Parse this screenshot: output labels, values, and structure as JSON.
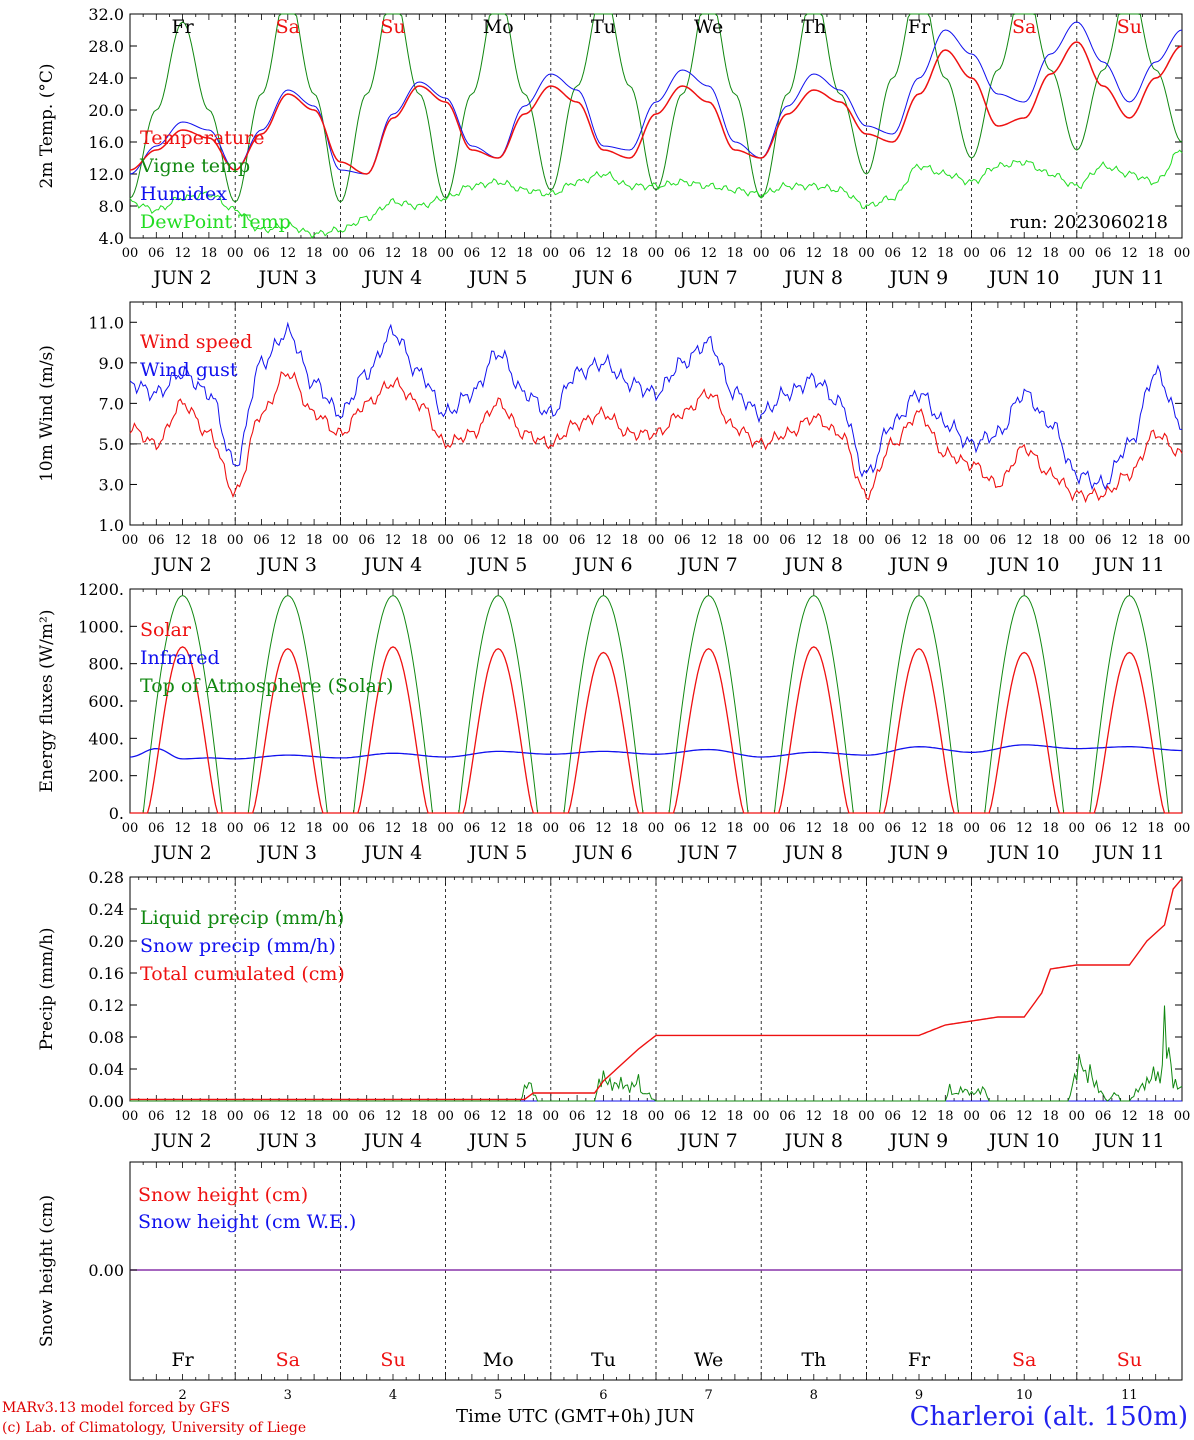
{
  "footer": {
    "model": "MARv3.13 model forced by GFS",
    "copyright": "(c) Lab. of Climatology, University of Liege",
    "time_axis": "Time UTC (GMT+0h)",
    "month": "JUN",
    "station": "Charleroi (alt. 150m)"
  },
  "colors": {
    "red": "#ee1111",
    "green": "#118811",
    "blue": "#1111ee",
    "lime": "#22dd22",
    "purple": "#8833aa"
  },
  "days": {
    "weekdays": [
      "Fr",
      "Sa",
      "Su",
      "Mo",
      "Tu",
      "We",
      "Th",
      "Fr",
      "Sa",
      "Su"
    ],
    "weekend": [
      false,
      true,
      true,
      false,
      false,
      false,
      false,
      false,
      true,
      true
    ],
    "dates": [
      "JUN  2",
      "JUN  3",
      "JUN  4",
      "JUN  5",
      "JUN  6",
      "JUN  7",
      "JUN  8",
      "JUN  9",
      "JUN 10",
      "JUN 11"
    ],
    "day_numbers": [
      "2",
      "3",
      "4",
      "5",
      "6",
      "7",
      "8",
      "9",
      "10",
      "11"
    ],
    "hour_ticks": [
      "00",
      "06",
      "12",
      "18"
    ],
    "end_tick": "00"
  },
  "chart_data": [
    {
      "type": "line",
      "id": "temperature",
      "ylabel": "2m Temp. (°C)",
      "ylim": [
        4,
        32
      ],
      "yticks": [
        "4.0",
        "8.0",
        "12.0",
        "16.0",
        "20.0",
        "24.0",
        "28.0",
        "32.0"
      ],
      "run_label": "run: 2023060218",
      "x_unit": "hours since JUN 2 00 UTC",
      "series": [
        {
          "name": "Temperature",
          "color": "red",
          "x": [
            0,
            6,
            12,
            18,
            24,
            30,
            36,
            42,
            48,
            54,
            60,
            66,
            72,
            78,
            84,
            90,
            96,
            102,
            108,
            114,
            120,
            126,
            132,
            138,
            144,
            150,
            156,
            162,
            168,
            174,
            180,
            186,
            192,
            198,
            204,
            210,
            216,
            222,
            228,
            234,
            240
          ],
          "y": [
            12.5,
            15,
            17.5,
            16.5,
            12.5,
            17,
            22,
            20,
            13.5,
            12,
            19,
            23,
            21,
            15,
            14,
            19.5,
            23,
            21,
            15,
            14,
            19.5,
            23,
            21,
            15,
            14,
            19.5,
            22.5,
            21,
            17,
            16,
            22,
            27.5,
            24,
            18,
            19,
            24.5,
            28.5,
            23,
            19,
            24,
            28
          ]
        },
        {
          "name": "Vigne temp",
          "color": "green",
          "x": [
            0,
            6,
            12,
            18,
            24,
            30,
            36,
            42,
            48,
            54,
            60,
            66,
            72,
            78,
            84,
            90,
            96,
            102,
            108,
            114,
            120,
            126,
            132,
            138,
            144,
            150,
            156,
            162,
            168,
            174,
            180,
            186,
            192,
            198,
            204,
            210,
            216,
            222,
            228,
            234,
            240
          ],
          "y": [
            9,
            20,
            31,
            20,
            8.5,
            22,
            35,
            22,
            8.5,
            22,
            35,
            22,
            9,
            22,
            35,
            22,
            10,
            23,
            35,
            23,
            10,
            22,
            35,
            22,
            9,
            22,
            35,
            22,
            12,
            24,
            36,
            24,
            14,
            25,
            36,
            25,
            15,
            25,
            36,
            25,
            16
          ]
        },
        {
          "name": "Humidex",
          "color": "blue",
          "x": [
            0,
            6,
            12,
            18,
            24,
            30,
            36,
            42,
            48,
            54,
            60,
            66,
            72,
            78,
            84,
            90,
            96,
            102,
            108,
            114,
            120,
            126,
            132,
            138,
            144,
            150,
            156,
            162,
            168,
            174,
            180,
            186,
            192,
            198,
            204,
            210,
            216,
            222,
            228,
            234,
            240
          ],
          "y": [
            12,
            15.5,
            18.5,
            17.5,
            12.5,
            17.5,
            22.5,
            20.5,
            12.5,
            12,
            19.5,
            23.5,
            21.5,
            15.5,
            14,
            20.5,
            24.5,
            22.5,
            15.5,
            15,
            21,
            25,
            23,
            16,
            14,
            20.5,
            24.5,
            22.5,
            18,
            17,
            24,
            30,
            27,
            22,
            21,
            27,
            31,
            26,
            21,
            26,
            30
          ]
        },
        {
          "name": "DewPoint Temp",
          "color": "lime",
          "x": [
            0,
            6,
            12,
            18,
            24,
            30,
            36,
            42,
            48,
            54,
            60,
            66,
            72,
            78,
            84,
            90,
            96,
            102,
            108,
            114,
            120,
            126,
            132,
            138,
            144,
            150,
            156,
            162,
            168,
            174,
            180,
            186,
            192,
            198,
            204,
            210,
            216,
            222,
            228,
            234,
            240
          ],
          "y": [
            8.5,
            7.5,
            9,
            9.5,
            7.5,
            5,
            5.5,
            4.5,
            5,
            6.5,
            8.5,
            8,
            9,
            10.5,
            11,
            10,
            9.5,
            11,
            12,
            10.5,
            10.5,
            11,
            10.5,
            10,
            9.5,
            10.5,
            10.5,
            10,
            8,
            9,
            13,
            12,
            11,
            13,
            13.5,
            12,
            10.5,
            13,
            12,
            11,
            15
          ]
        }
      ]
    },
    {
      "type": "line",
      "id": "wind",
      "ylabel": "10m Wind (m/s)",
      "ylim": [
        1,
        12
      ],
      "yticks": [
        "1.0",
        "3.0",
        "5.0",
        "7.0",
        "9.0",
        "11.0"
      ],
      "reference_line": 5,
      "x_unit": "hours since JUN 2 00 UTC",
      "series": [
        {
          "name": "Wind speed",
          "color": "red",
          "x": [
            0,
            6,
            12,
            18,
            24,
            30,
            36,
            42,
            48,
            54,
            60,
            66,
            72,
            78,
            84,
            90,
            96,
            102,
            108,
            114,
            120,
            126,
            132,
            138,
            144,
            150,
            156,
            162,
            168,
            174,
            180,
            186,
            192,
            198,
            204,
            210,
            216,
            222,
            228,
            234,
            240
          ],
          "y": [
            5.8,
            5,
            7,
            5.5,
            2.6,
            6.5,
            8.5,
            6.5,
            5.5,
            7,
            8,
            7,
            5,
            5.5,
            7,
            5.5,
            5,
            6,
            6.5,
            5.5,
            5.5,
            6.5,
            7.5,
            5.8,
            5,
            5.5,
            6.3,
            5.5,
            2.5,
            5,
            6.5,
            4.5,
            4,
            3,
            4.8,
            3.5,
            2.5,
            2.5,
            3.5,
            5.5,
            4.5
          ]
        },
        {
          "name": "Wind gust",
          "color": "blue",
          "x": [
            0,
            6,
            12,
            18,
            24,
            30,
            36,
            42,
            48,
            54,
            60,
            66,
            72,
            78,
            84,
            90,
            96,
            102,
            108,
            114,
            120,
            126,
            132,
            138,
            144,
            150,
            156,
            162,
            168,
            174,
            180,
            186,
            192,
            198,
            204,
            210,
            216,
            222,
            228,
            234,
            240
          ],
          "y": [
            8,
            7.5,
            8.5,
            7.5,
            4,
            9,
            10.5,
            8,
            6.5,
            8.5,
            10.5,
            8.5,
            6.5,
            7.5,
            9.5,
            7.5,
            6.5,
            8.5,
            9,
            8,
            7.5,
            9,
            10,
            7.5,
            6.5,
            7.5,
            8.2,
            7,
            3.5,
            6,
            7.5,
            6,
            5,
            5.5,
            7.5,
            6,
            3.5,
            3,
            5,
            8.5,
            6
          ]
        }
      ]
    },
    {
      "type": "line",
      "id": "energy",
      "ylabel": "Energy fluxes (W/m²)",
      "ylim": [
        0,
        1200
      ],
      "yticks": [
        "0.",
        "200.",
        "400.",
        "600.",
        "800.",
        "1000.",
        "1200."
      ],
      "x_unit": "hours since JUN 2 00 UTC",
      "daily_peaks": {
        "Top of Atmosphere (Solar)": 1165,
        "Solar": [
          890,
          880,
          890,
          880,
          860,
          880,
          890,
          880,
          860,
          860
        ]
      },
      "series": [
        {
          "name": "Solar",
          "color": "red",
          "shape": "daily sine 04-20 UTC"
        },
        {
          "name": "Infrared",
          "color": "blue",
          "x": [
            0,
            6,
            12,
            18,
            24,
            36,
            48,
            60,
            72,
            84,
            96,
            108,
            120,
            132,
            144,
            156,
            168,
            180,
            192,
            204,
            216,
            228,
            240
          ],
          "y": [
            300,
            345,
            290,
            295,
            290,
            310,
            295,
            320,
            300,
            330,
            315,
            330,
            315,
            340,
            300,
            325,
            310,
            355,
            325,
            365,
            345,
            355,
            335
          ]
        },
        {
          "name": "Top of Atmosphere (Solar)",
          "color": "green",
          "shape": "daily sine 03-21 UTC"
        }
      ]
    },
    {
      "type": "line",
      "id": "precip",
      "ylabel": "Precip (mm/h)",
      "ylim": [
        0,
        0.28
      ],
      "yticks": [
        "0.00",
        "0.04",
        "0.08",
        "0.12",
        "0.16",
        "0.20",
        "0.24",
        "0.28"
      ],
      "x_unit": "hours since JUN 2 00 UTC",
      "series": [
        {
          "name": "Liquid precip (mm/h)",
          "color": "green",
          "x": [
            0,
            89,
            90,
            91,
            92,
            93,
            106,
            107,
            108,
            110,
            112,
            114,
            116,
            117,
            118,
            119,
            120,
            186,
            187,
            188,
            190,
            192,
            195,
            196,
            214,
            216,
            217,
            218,
            219,
            220,
            221,
            223,
            225,
            226,
            228,
            230,
            232,
            234,
            235,
            236,
            237,
            238,
            240
          ],
          "y": [
            0,
            0,
            0.02,
            0.032,
            0.015,
            0,
            0,
            0.03,
            0.04,
            0.025,
            0.03,
            0.02,
            0.035,
            0.01,
            0.015,
            0.005,
            0,
            0,
            0.022,
            0.01,
            0.02,
            0.012,
            0.02,
            0,
            0,
            0.05,
            0.07,
            0.04,
            0.05,
            0.03,
            0.02,
            0,
            0.015,
            0,
            0,
            0.02,
            0.03,
            0.05,
            0.03,
            0.12,
            0.08,
            0.03,
            0.02
          ]
        },
        {
          "name": "Snow precip (mm/h)",
          "color": "blue",
          "x": [
            0,
            240
          ],
          "y": [
            0,
            0
          ]
        },
        {
          "name": "Total cumulated (cm)",
          "color": "red",
          "x": [
            0,
            90,
            92,
            106,
            108,
            112,
            116,
            120,
            126,
            180,
            186,
            192,
            198,
            204,
            208,
            210,
            216,
            228,
            232,
            236,
            238,
            240
          ],
          "y": [
            0.002,
            0.002,
            0.01,
            0.01,
            0.025,
            0.045,
            0.065,
            0.082,
            0.082,
            0.082,
            0.095,
            0.1,
            0.105,
            0.105,
            0.135,
            0.165,
            0.17,
            0.17,
            0.2,
            0.22,
            0.265,
            0.278
          ]
        }
      ]
    },
    {
      "type": "line",
      "id": "snow",
      "ylabel": "Snow height (cm)",
      "ytick": "0.00",
      "x_unit": "hours since JUN 2 00 UTC",
      "series": [
        {
          "name": "Snow height (cm)",
          "color": "red",
          "x": [
            0,
            240
          ],
          "y": [
            0,
            0
          ]
        },
        {
          "name": "Snow height (cm W.E.)",
          "color": "blue",
          "x": [
            0,
            240
          ],
          "y": [
            0,
            0
          ]
        }
      ]
    }
  ]
}
